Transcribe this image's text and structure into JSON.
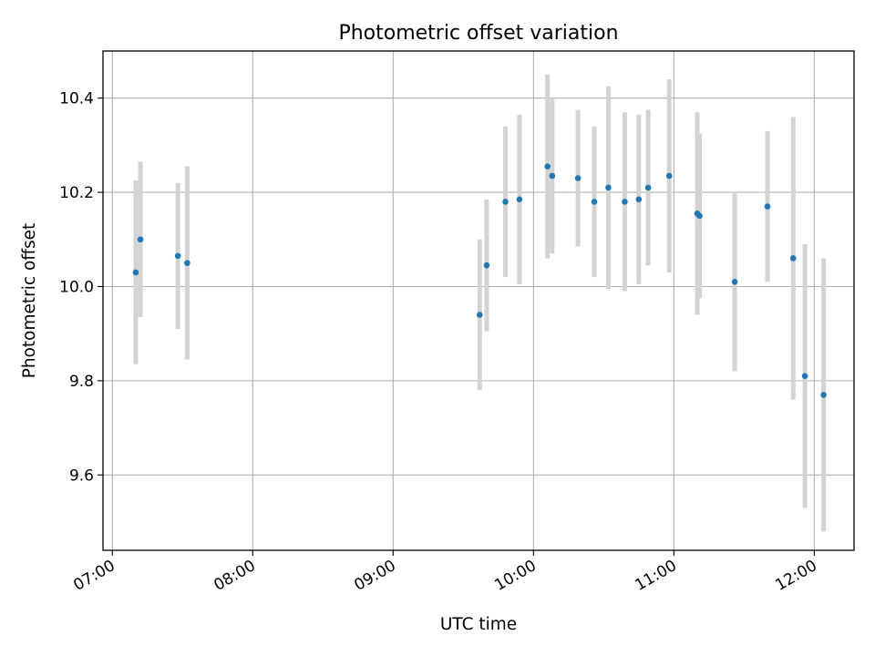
{
  "chart_data": {
    "type": "scatter",
    "title": "Photometric offset variation",
    "xlabel": "UTC time",
    "ylabel": "Photometric offset",
    "x_unit": "UTC time",
    "xlim": [
      "06:56",
      "12:17"
    ],
    "ylim": [
      9.44,
      10.5
    ],
    "xticks": [
      "07:00",
      "08:00",
      "09:00",
      "10:00",
      "11:00",
      "12:00"
    ],
    "yticks": [
      9.6,
      9.8,
      10.0,
      10.2,
      10.4
    ],
    "grid": true,
    "colors": {
      "point": "#1f77b4",
      "errorbar": "#d3d3d3",
      "grid": "#b0b0b0"
    },
    "points": [
      {
        "t": "07:10",
        "y": 10.03,
        "err": 0.195
      },
      {
        "t": "07:12",
        "y": 10.1,
        "err": 0.165
      },
      {
        "t": "07:28",
        "y": 10.065,
        "err": 0.155
      },
      {
        "t": "07:32",
        "y": 10.05,
        "err": 0.205
      },
      {
        "t": "09:37",
        "y": 9.94,
        "err": 0.16
      },
      {
        "t": "09:40",
        "y": 10.045,
        "err": 0.14
      },
      {
        "t": "09:48",
        "y": 10.18,
        "err": 0.16
      },
      {
        "t": "09:54",
        "y": 10.185,
        "err": 0.18
      },
      {
        "t": "10:06",
        "y": 10.255,
        "err": 0.195
      },
      {
        "t": "10:08",
        "y": 10.235,
        "err": 0.165
      },
      {
        "t": "10:19",
        "y": 10.23,
        "err": 0.145
      },
      {
        "t": "10:26",
        "y": 10.18,
        "err": 0.16
      },
      {
        "t": "10:32",
        "y": 10.21,
        "err": 0.215
      },
      {
        "t": "10:39",
        "y": 10.18,
        "err": 0.19
      },
      {
        "t": "10:45",
        "y": 10.185,
        "err": 0.18
      },
      {
        "t": "10:49",
        "y": 10.21,
        "err": 0.165
      },
      {
        "t": "10:58",
        "y": 10.235,
        "err": 0.205
      },
      {
        "t": "11:10",
        "y": 10.155,
        "err": 0.215
      },
      {
        "t": "11:11",
        "y": 10.15,
        "err": 0.175
      },
      {
        "t": "11:26",
        "y": 10.01,
        "err": 0.19
      },
      {
        "t": "11:40",
        "y": 10.17,
        "err": 0.16
      },
      {
        "t": "11:51",
        "y": 10.06,
        "err": 0.3
      },
      {
        "t": "11:56",
        "y": 9.81,
        "err": 0.28
      },
      {
        "t": "12:04",
        "y": 9.77,
        "err": 0.29
      }
    ]
  }
}
